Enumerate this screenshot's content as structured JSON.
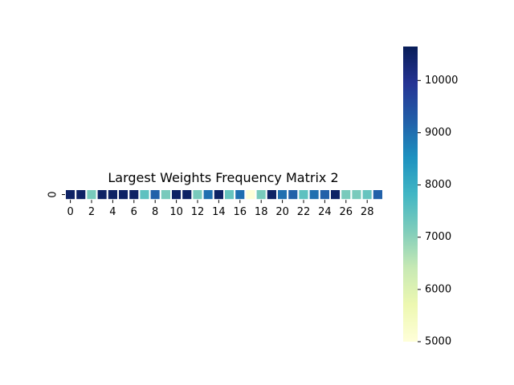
{
  "chart_data": {
    "type": "heatmap",
    "title": "Largest Weights Frequency Matrix 2",
    "xlabel": "",
    "ylabel": "",
    "rows": [
      "0"
    ],
    "columns": [
      0,
      1,
      2,
      3,
      4,
      5,
      6,
      7,
      8,
      9,
      10,
      11,
      12,
      13,
      14,
      15,
      16,
      17,
      18,
      19,
      20,
      21,
      22,
      23,
      24,
      25,
      26,
      27,
      28,
      29
    ],
    "x_tick_labels": [
      "0",
      "2",
      "4",
      "6",
      "8",
      "10",
      "12",
      "14",
      "16",
      "18",
      "20",
      "22",
      "24",
      "26",
      "28"
    ],
    "values": [
      [
        10500,
        10500,
        7200,
        10500,
        10500,
        10500,
        10500,
        7500,
        9200,
        7200,
        10500,
        10500,
        7200,
        9000,
        10500,
        7400,
        9000,
        5000,
        7200,
        10500,
        9000,
        9200,
        7500,
        9000,
        9200,
        10500,
        7200,
        7200,
        7400,
        9200
      ]
    ],
    "colorbar": {
      "min": 5000,
      "max": 10650,
      "tick_labels": [
        "5000",
        "6000",
        "7000",
        "8000",
        "9000",
        "10000"
      ],
      "colormap": "YlGnBu"
    }
  }
}
